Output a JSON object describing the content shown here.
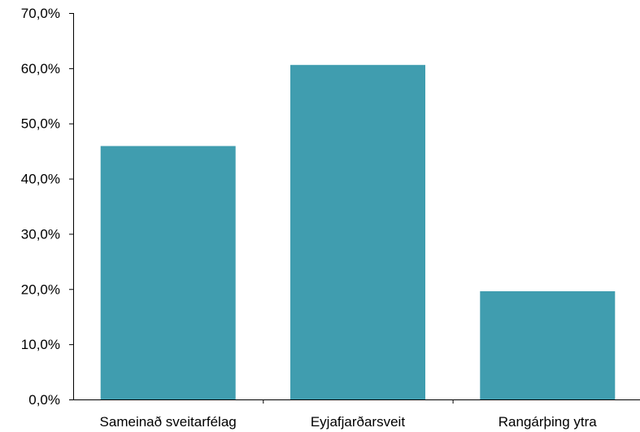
{
  "chart_data": {
    "type": "bar",
    "categories": [
      "Sameinað sveitarfélag",
      "Eyjafjarðarsveit",
      "Rangárþing ytra"
    ],
    "values": [
      45.9,
      60.6,
      19.6
    ],
    "yticks": [
      "0,0%",
      "10,0%",
      "20,0%",
      "30,0%",
      "40,0%",
      "50,0%",
      "60,0%",
      "70,0%"
    ],
    "ylim": [
      0,
      70
    ],
    "grid": false,
    "legend": "none",
    "bar_color": "#409DAF"
  }
}
